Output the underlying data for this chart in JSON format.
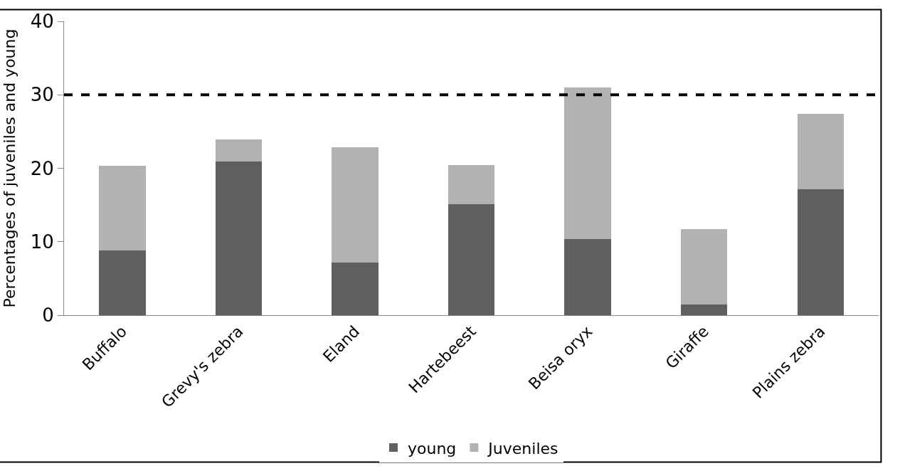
{
  "chart_data": {
    "type": "bar",
    "stacked": true,
    "ylabel": "Percentages of juveniles and young",
    "categories": [
      "Buffalo",
      "Grevy's zebra",
      "Eland",
      "Hartebeest",
      "Beisa oryx",
      "Giraffe",
      "Plains zebra"
    ],
    "series": [
      {
        "name": "young",
        "color": "#5f5f5f",
        "values": [
          8.8,
          20.9,
          7.2,
          15.1,
          10.4,
          1.5,
          17.1
        ]
      },
      {
        "name": "Juveniles",
        "color": "#b2b2b2",
        "values": [
          11.5,
          3.0,
          15.7,
          5.3,
          20.6,
          10.2,
          10.3
        ]
      }
    ],
    "ylim": [
      0,
      40
    ],
    "yticks": [
      0,
      10,
      20,
      30,
      40
    ],
    "legend": "bottom",
    "ref_lines": [
      {
        "axis": "y",
        "value": 30,
        "color": "#000000",
        "line_style": "dashed"
      }
    ]
  }
}
